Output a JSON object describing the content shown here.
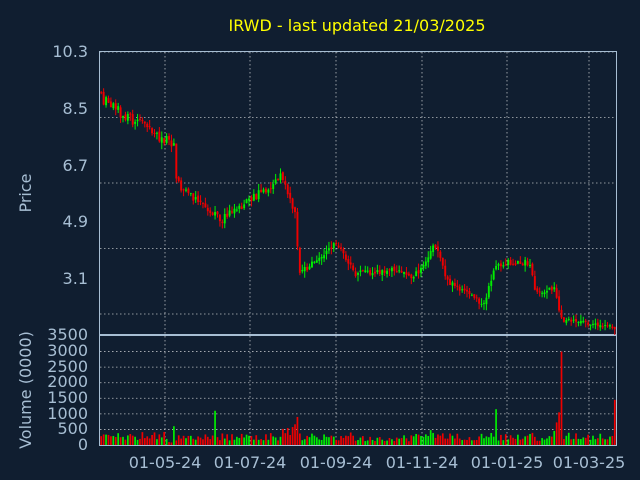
{
  "chart_data": [
    {
      "type": "candlestick",
      "title": "IRWD - last updated 21/03/2025",
      "ylabel": "Price",
      "ylim": [
        2.55,
        10.3
      ],
      "y_ticks": [
        "10.3",
        "8.5",
        "6.7",
        "4.9",
        "3.1"
      ],
      "x_ticks": [
        "01-05-24",
        "01-07-24",
        "01-09-24",
        "01-11-24",
        "01-01-25",
        "01-03-25"
      ],
      "colors": {
        "up": "#00ee00",
        "down": "#ee0000",
        "background": "#101e30",
        "text": "#a7bed3",
        "title": "#ffff00",
        "grid": "#ffffff"
      },
      "segments": [
        {
          "from": 0,
          "to": 28,
          "price": [
            9.0,
            7.8
          ],
          "vol": [
            140,
            420
          ]
        },
        {
          "from": 28,
          "to": 30,
          "price": [
            7.8,
            7.9
          ],
          "vol": [
            80,
            140
          ]
        },
        {
          "from": 30,
          "to": 31,
          "price": [
            7.9,
            6.7
          ],
          "vol": [
            150,
            700
          ]
        },
        {
          "from": 31,
          "to": 50,
          "price": [
            6.7,
            5.7
          ],
          "vol": [
            140,
            350
          ]
        },
        {
          "from": 50,
          "to": 75,
          "price": [
            5.7,
            6.9
          ],
          "vol": [
            140,
            400
          ]
        },
        {
          "from": 75,
          "to": 80,
          "price": [
            6.9,
            5.8
          ],
          "vol": [
            250,
            600
          ]
        },
        {
          "from": 80,
          "to": 82,
          "price": [
            5.8,
            4.2
          ],
          "vol": [
            300,
            900
          ]
        },
        {
          "from": 82,
          "to": 97,
          "price": [
            4.2,
            5.1
          ],
          "vol": [
            140,
            380
          ]
        },
        {
          "from": 97,
          "to": 105,
          "price": [
            5.1,
            4.2
          ],
          "vol": [
            140,
            420
          ]
        },
        {
          "from": 105,
          "to": 120,
          "price": [
            4.2,
            4.3
          ],
          "vol": [
            120,
            320
          ]
        },
        {
          "from": 120,
          "to": 130,
          "price": [
            4.3,
            4.1
          ],
          "vol": [
            120,
            320
          ]
        },
        {
          "from": 130,
          "to": 138,
          "price": [
            4.2,
            5.0
          ],
          "vol": [
            200,
            500
          ]
        },
        {
          "from": 138,
          "to": 143,
          "price": [
            5.0,
            4.0
          ],
          "vol": [
            200,
            450
          ]
        },
        {
          "from": 143,
          "to": 158,
          "price": [
            4.0,
            3.35
          ],
          "vol": [
            150,
            380
          ]
        },
        {
          "from": 158,
          "to": 163,
          "price": [
            3.35,
            4.5
          ],
          "vol": [
            200,
            600
          ]
        },
        {
          "from": 163,
          "to": 177,
          "price": [
            4.5,
            4.5
          ],
          "vol": [
            130,
            380
          ]
        },
        {
          "from": 177,
          "to": 179,
          "price": [
            4.5,
            3.7
          ],
          "vol": [
            200,
            500
          ]
        },
        {
          "from": 179,
          "to": 187,
          "price": [
            3.7,
            3.8
          ],
          "vol": [
            120,
            300
          ]
        },
        {
          "from": 187,
          "to": 190,
          "price": [
            3.8,
            2.95
          ],
          "vol": [
            300,
            900
          ]
        },
        {
          "from": 190,
          "to": 212,
          "price": [
            2.95,
            2.72
          ],
          "vol": [
            150,
            400
          ]
        }
      ],
      "special_volume": [
        {
          "day": 47,
          "value": 1100
        },
        {
          "day": 81,
          "value": 900
        },
        {
          "day": 163,
          "value": 1150
        },
        {
          "day": 189,
          "value": 1050
        },
        {
          "day": 190,
          "value": 3000
        },
        {
          "day": 212,
          "value": 1450
        }
      ]
    },
    {
      "type": "bar",
      "ylabel": "Volume (0000)",
      "ylim": [
        0,
        3500
      ],
      "y_ticks": [
        "3500",
        "3000",
        "2500",
        "2000",
        "1500",
        "1000",
        "500",
        "0"
      ]
    }
  ]
}
